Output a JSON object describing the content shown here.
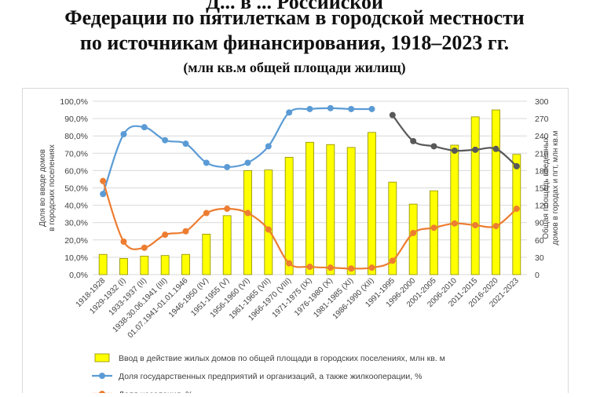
{
  "titles": {
    "line0": "Д... в ... Российской",
    "line1": "Федерации по пятилеткам в городской местности",
    "line2": "по источникам финансирования, 1918–2023 гг.",
    "line3": "(млн кв.м общей площади жилищ)"
  },
  "colors": {
    "bar_fill": "#ffff00",
    "bar_stroke": "#8c8c00",
    "state_line": "#5b9bd5",
    "state_line_late": "#595959",
    "population_line": "#ed7d31",
    "grid": "#d9d9d9"
  },
  "chart_data": {
    "type": "bar",
    "categories": [
      "1918-1928",
      "1929-1932 (I)",
      "1933-1937 (II)",
      "1938-30.06.1941 (III)",
      "01.07.1941-01.01.1946",
      "1946-1950 (IV)",
      "1951-1955 (V)",
      "1956-1960 (VI)",
      "1961-1965 (VII)",
      "1966-1970 (VIII)",
      "1971-1975 (IX)",
      "1976-1980 (X)",
      "1981-1985 (XI)",
      "1986-1990 (XII)",
      "1991-1995",
      "1996-2000",
      "2001-2005",
      "2006-2010",
      "2011-2015",
      "2016-2020",
      "2021-2023"
    ],
    "left_axis": {
      "label": "Доля во вводе домов в городских поселениях",
      "ticks": [
        "0,0%",
        "10,0%",
        "20,0%",
        "30,0%",
        "40,0%",
        "50,0%",
        "60,0%",
        "70,0%",
        "80,0%",
        "90,0%",
        "100,0%"
      ],
      "ylim": [
        0,
        100
      ]
    },
    "right_axis": {
      "label": "Общая площадь введенных домов в городах и пгт, млн кв.м",
      "ticks": [
        "0",
        "30",
        "60",
        "90",
        "120",
        "150",
        "180",
        "210",
        "240",
        "270",
        "300"
      ],
      "ylim": [
        0,
        300
      ]
    },
    "series": [
      {
        "name": "Ввод в действие жилых домов по общей площади в городских поселениях, млн кв. м",
        "type": "bar",
        "axis": "right",
        "values": [
          35,
          28,
          32,
          33,
          35,
          70,
          102,
          180,
          181,
          203,
          229,
          225,
          220,
          246,
          160,
          122,
          145,
          224,
          273,
          285,
          208
        ]
      },
      {
        "name": "Доля государственных предприятий и организаций, а также жилкооперации, %",
        "type": "line",
        "axis": "left",
        "values": [
          46.5,
          81.0,
          85.0,
          77.5,
          75.5,
          64.5,
          62.0,
          64.5,
          74.0,
          93.5,
          95.5,
          96.0,
          95.5,
          95.5,
          null,
          null,
          null,
          null,
          null,
          null,
          null
        ]
      },
      {
        "name": "",
        "type": "line",
        "axis": "left",
        "values": [
          null,
          null,
          null,
          null,
          null,
          null,
          null,
          null,
          null,
          null,
          null,
          null,
          null,
          null,
          92.0,
          77.0,
          74.0,
          71.5,
          72.0,
          72.5,
          62.5
        ]
      },
      {
        "name": "Доля населения, %",
        "type": "line",
        "axis": "left",
        "values": [
          54.0,
          19.0,
          15.5,
          23.0,
          25.0,
          35.5,
          38.0,
          35.5,
          26.0,
          6.5,
          4.5,
          4.0,
          3.5,
          4.0,
          8.0,
          24.0,
          27.0,
          29.5,
          28.5,
          28.0,
          38.0
        ]
      }
    ],
    "legend_position": "bottom",
    "grid": true
  }
}
